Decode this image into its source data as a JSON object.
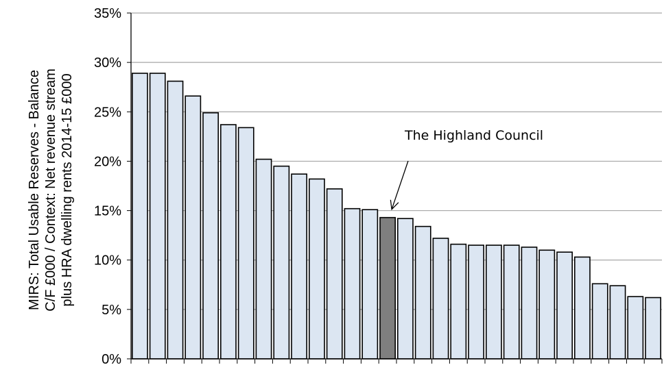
{
  "chart_data": {
    "type": "bar",
    "title": "",
    "xlabel": "",
    "ylabel": [
      "MIRS: Total Usable Reserves - Balance",
      "C/F £000 / Context: Net revenue stream",
      "plus HRA dwelling rents 2014-15 £000"
    ],
    "y_tick_labels": [
      "0%",
      "5%",
      "10%",
      "15%",
      "20%",
      "25%",
      "30%",
      "35%"
    ],
    "ylim": [
      0,
      35
    ],
    "grid": true,
    "values": [
      28.9,
      28.9,
      28.1,
      26.6,
      24.9,
      23.7,
      23.4,
      20.2,
      19.5,
      18.7,
      18.2,
      17.2,
      15.2,
      15.1,
      14.3,
      14.2,
      13.4,
      12.2,
      11.6,
      11.5,
      11.5,
      11.5,
      11.3,
      11.0,
      10.8,
      10.3,
      7.6,
      7.4,
      6.3,
      6.2
    ],
    "highlight_index": 14,
    "annotation": "The Highland Council",
    "colors": {
      "bar": "#dce6f2",
      "highlight": "#7f7f7f",
      "outline": "#000000",
      "grid": "#a6a6a6"
    }
  }
}
